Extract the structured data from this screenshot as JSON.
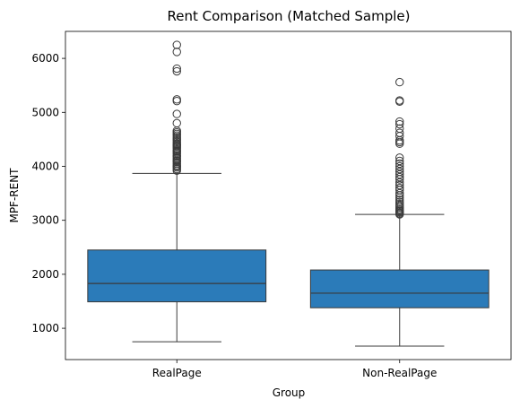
{
  "chart_data": {
    "type": "box",
    "title": "Rent Comparison (Matched Sample)",
    "xlabel": "Group",
    "ylabel": "MPF-RENT",
    "ylim": [
      420,
      6500
    ],
    "yticks": [
      1000,
      2000,
      3000,
      4000,
      5000,
      6000
    ],
    "categories": [
      "RealPage",
      "Non-RealPage"
    ],
    "box_color": "#2b7bb9",
    "edge_color": "#3a3a3a",
    "boxes": [
      {
        "category": "RealPage",
        "whisker_low": 750,
        "q1": 1490,
        "median": 1830,
        "q3": 2450,
        "whisker_high": 3870,
        "outliers": [
          3920,
          3950,
          3980,
          4000,
          4020,
          4050,
          4080,
          4100,
          4120,
          4150,
          4180,
          4200,
          4230,
          4260,
          4280,
          4300,
          4330,
          4360,
          4380,
          4400,
          4420,
          4450,
          4480,
          4510,
          4540,
          4570,
          4600,
          4630,
          4660,
          4800,
          4970,
          5210,
          5240,
          5760,
          5810,
          6120,
          6250
        ]
      },
      {
        "category": "Non-RealPage",
        "whisker_low": 670,
        "q1": 1380,
        "median": 1650,
        "q3": 2080,
        "whisker_high": 3110,
        "outliers": [
          3110,
          3130,
          3150,
          3170,
          3190,
          3210,
          3240,
          3270,
          3300,
          3340,
          3380,
          3420,
          3460,
          3500,
          3560,
          3600,
          3650,
          3700,
          3760,
          3800,
          3850,
          3900,
          3950,
          4000,
          4050,
          4100,
          4160,
          4420,
          4450,
          4480,
          4560,
          4620,
          4700,
          4780,
          4830,
          5200,
          5220,
          5560
        ]
      }
    ]
  }
}
